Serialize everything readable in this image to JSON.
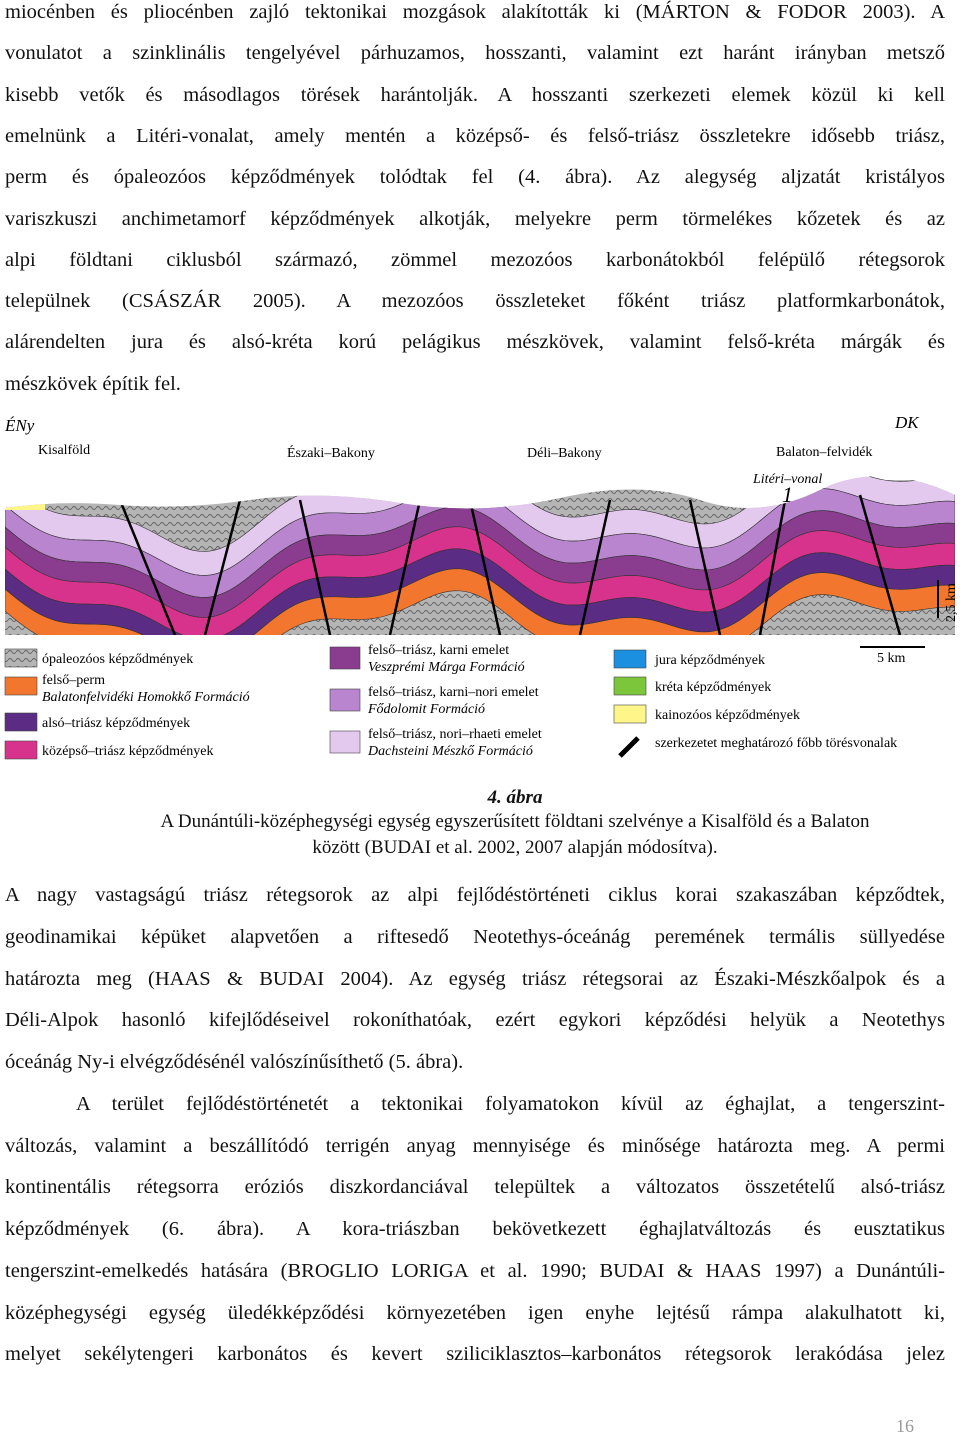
{
  "paragraphs": [
    {
      "lines": [
        "miocénben és pliocénben zajló tektonikai mozgások alakították ki (MÁRTON & FODOR 2003). A",
        "vonulatot a szinklinális tengelyével párhuzamos, hosszanti, valamint ezt haránt irányban metsző",
        "kisebb vetők és másodlagos törések harántolják. A hosszanti szerkezeti elemek közül ki kell",
        "emelnünk a Litéri-vonalat, amely mentén a középső- és felső-triász összletekre idősebb triász,",
        "perm és ópaleozóos képződmények tolódtak fel (4. ábra). Az alegység aljzatát kristályos",
        "variszkuszi anchimetamorf képződmények alkotják, melyekre perm törmelékes kőzetek és az",
        "alpi földtani ciklusból származó, zömmel mezozóos karbonátokból felépülő rétegsorok",
        "települnek (CSÁSZÁR 2005). A mezozóos összleteket főként triász platformkarbonátok,",
        "alárendelten jura és alsó-kréta korú pelágikus mészkövek, valamint felső-kréta márgák és",
        "mészkövek építik fel."
      ]
    },
    {
      "lines": [
        "A nagy vastagságú triász rétegsorok az alpi fejlődéstörténeti ciklus korai szakaszában képződtek,",
        "geodinamikai képüket alapvetően a riftesedő Neotethys-óceánág peremének termális süllyedése",
        "határozta meg (HAAS & BUDAI 2004). Az egység triász rétegsorai az Északi-Mészkőalpok és a",
        "Déli-Alpok hasonló kifejlődéseivel rokoníthatóak, ezért egykori képződési helyük a Neotethys",
        "óceánág Ny-i elvégződésénél valószínűsíthető (5. ábra)."
      ]
    },
    {
      "lines": [
        "A terület fejlődéstörténetét a tektonikai folyamatokon kívül az éghajlat, a tengerszint-",
        "változás, valamint a beszállítódó terrigén anyag mennyisége és minősége határozta meg. A permi",
        "kontinentális rétegsorra eróziós diszkordanciával települtek a változatos összetételű alsó-triász",
        "képződmények (6. ábra). A kora-triászban bekövetkezett éghajlatváltozás és eusztatikus",
        "tengerszint-emelkedés hatására (BROGLIO LORIGA et al. 1990; BUDAI & HAAS 1997) a Dunántúli-",
        "középhegységi egység üledékképződési környezetében igen enyhe lejtésű rámpa alakulhatott ki,",
        "melyet sekélytengeri karbonátos és kevert sziliciklasztos–karbonátos rétegsorok lerakódása jelez"
      ]
    }
  ],
  "figure": {
    "direction_left": "ÉNy",
    "direction_right": "DK",
    "regions": [
      "Kisalföld",
      "Északi–Bakony",
      "Déli–Bakony",
      "Balaton–felvidék"
    ],
    "fault_name": "Litéri–vonal",
    "fault_number": "1",
    "vertical_scale": "2,5 km",
    "horizontal_scale": "5 km",
    "legend": [
      {
        "name": "ópaleozóos képződmények",
        "color": "#b5b5b5"
      },
      {
        "name": "felső–perm",
        "formation": "Balatonfelvidéki Homokkő Formáció",
        "color": "#f2762e"
      },
      {
        "name": "alsó–triász képződmények",
        "color": "#5b2c83"
      },
      {
        "name": "középső–triász képződmények",
        "color": "#d8338c"
      },
      {
        "name": "felső–triász, karni emelet",
        "formation": "Veszprémi Márga Formáció",
        "color": "#8a3d8f"
      },
      {
        "name": "felső–triász, karni–nori emelet",
        "formation": "Fődolomit Formáció",
        "color": "#b985cf"
      },
      {
        "name": "felső–triász, nori–rhaeti emelet",
        "formation": "Dachsteini Mészkő Formáció",
        "color": "#e4c9ee"
      },
      {
        "name": "jura képződmények",
        "color": "#1b90e0"
      },
      {
        "name": "kréta képződmények",
        "color": "#7cc63c"
      },
      {
        "name": "kainozóos képződmények",
        "color": "#fff68a"
      },
      {
        "name": "szerkezetet meghatározó főbb törésvonalak",
        "color": "#000000"
      }
    ]
  },
  "caption": {
    "label": "4. ábra",
    "lines": [
      "A Dunántúli-középhegységi egység egyszerűsített földtani szelvénye a Kisalföld és a Balaton",
      "között (BUDAI et al. 2002, 2007 alapján módosítva)."
    ]
  },
  "page_number": "16"
}
